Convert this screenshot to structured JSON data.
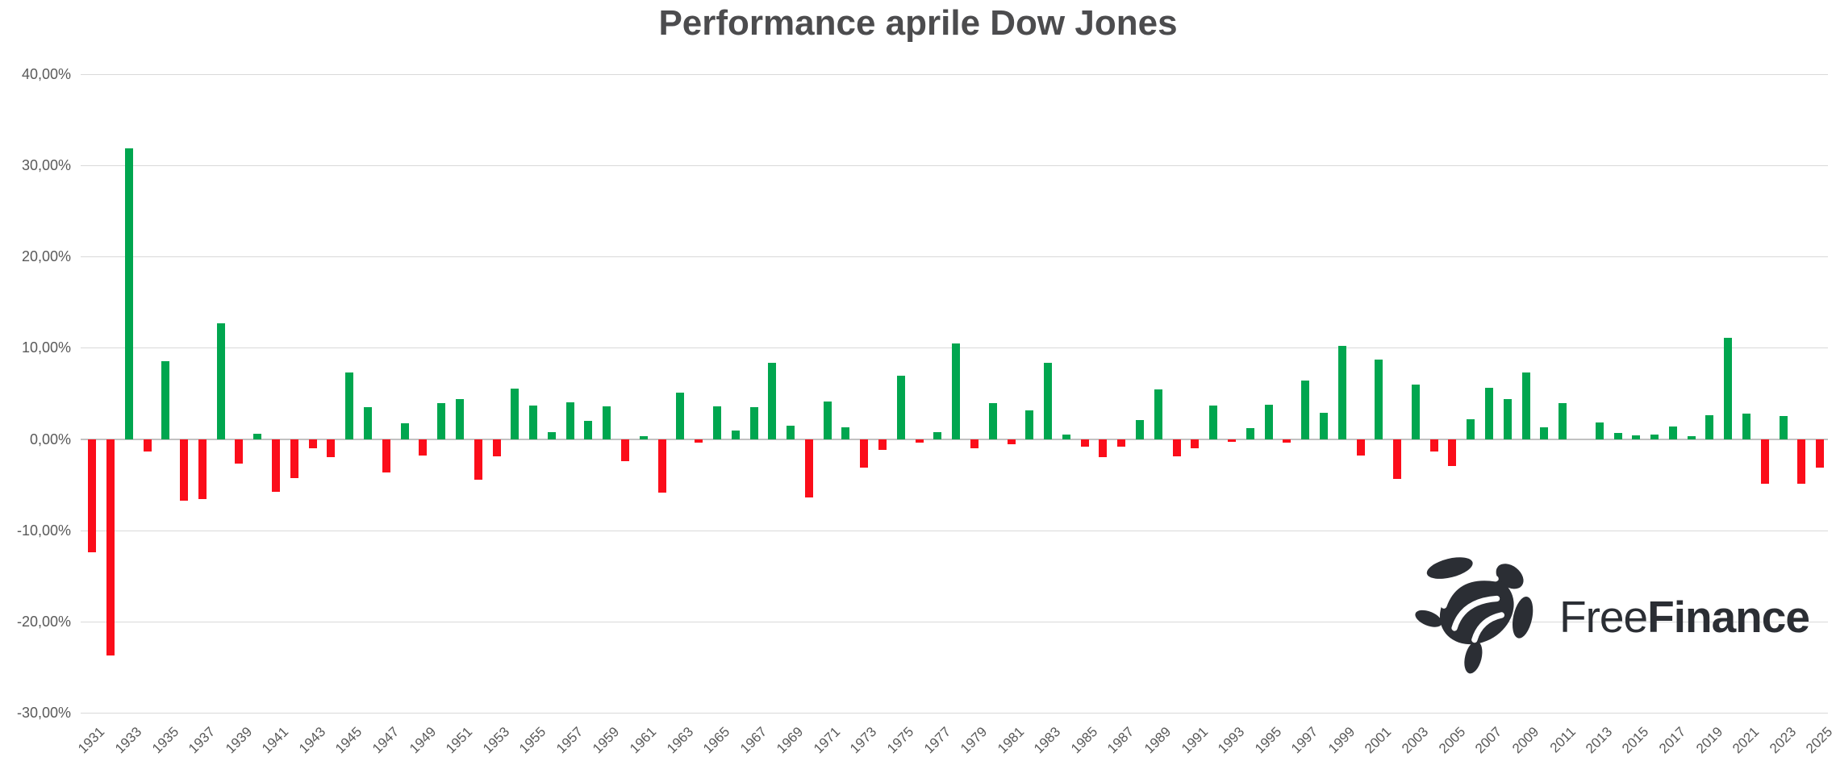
{
  "header": {
    "title": "Performance aprile Dow Jones"
  },
  "watermark": {
    "icon": "turtle-icon",
    "brand_regular": "Free",
    "brand_bold": "Finance"
  },
  "colors": {
    "positive": "#00a64f",
    "negative": "#fb0d1a",
    "gridline": "#d9d9d9",
    "zero_axis": "#c2c2c2",
    "axis_text": "#595959",
    "title_text": "#4c4c4e",
    "logo": "#2b2e34",
    "background": "#ffffff"
  },
  "chart_data": {
    "type": "bar",
    "title": "Performance aprile Dow Jones",
    "xlabel": "",
    "ylabel": "",
    "grid": true,
    "legend": false,
    "value_format": "percent with Italian comma decimals",
    "ylim": [
      -30,
      40
    ],
    "y_ticks": [
      {
        "label": "40,00%",
        "value": 40
      },
      {
        "label": "30,00%",
        "value": 30
      },
      {
        "label": "20,00%",
        "value": 20
      },
      {
        "label": "10,00%",
        "value": 10
      },
      {
        "label": "0,00%",
        "value": 0
      },
      {
        "label": "-10,00%",
        "value": -10
      },
      {
        "label": "-20,00%",
        "value": -20
      },
      {
        "label": "-30,00%",
        "value": -30
      }
    ],
    "x_tick_labels": [
      "1931",
      "1933",
      "1935",
      "1937",
      "1939",
      "1941",
      "1943",
      "1945",
      "1947",
      "1949",
      "1951",
      "1953",
      "1955",
      "1957",
      "1959",
      "1961",
      "1963",
      "1965",
      "1967",
      "1969",
      "1971",
      "1973",
      "1975",
      "1977",
      "1979",
      "1981",
      "1983",
      "1985",
      "1987",
      "1989",
      "1991",
      "1993",
      "1995",
      "1997",
      "1999",
      "2001",
      "2003",
      "2005",
      "2007",
      "2009",
      "2011",
      "2013",
      "2015",
      "2017",
      "2019",
      "2021",
      "2023",
      "2025"
    ],
    "years": [
      1931,
      1932,
      1933,
      1934,
      1935,
      1936,
      1937,
      1938,
      1939,
      1940,
      1941,
      1942,
      1943,
      1944,
      1945,
      1946,
      1947,
      1948,
      1949,
      1950,
      1951,
      1952,
      1953,
      1954,
      1955,
      1956,
      1957,
      1958,
      1959,
      1960,
      1961,
      1962,
      1963,
      1964,
      1965,
      1966,
      1967,
      1968,
      1969,
      1970,
      1971,
      1972,
      1973,
      1974,
      1975,
      1976,
      1977,
      1978,
      1979,
      1980,
      1981,
      1982,
      1983,
      1984,
      1985,
      1986,
      1987,
      1988,
      1989,
      1990,
      1991,
      1992,
      1993,
      1994,
      1995,
      1996,
      1997,
      1998,
      1999,
      2000,
      2001,
      2002,
      2003,
      2004,
      2005,
      2006,
      2007,
      2008,
      2009,
      2010,
      2011,
      2012,
      2013,
      2014,
      2015,
      2016,
      2017,
      2018,
      2019,
      2020,
      2021,
      2022,
      2023,
      2024,
      2025
    ],
    "values": [
      -12.4,
      -23.7,
      31.9,
      -1.4,
      8.5,
      -6.8,
      -6.6,
      12.7,
      -2.7,
      0.6,
      -5.8,
      -4.3,
      -1.0,
      -2.0,
      7.3,
      3.5,
      -3.7,
      1.7,
      -1.8,
      3.9,
      4.4,
      -4.5,
      -1.9,
      5.5,
      3.7,
      0.8,
      4.0,
      2.0,
      3.6,
      -2.4,
      0.3,
      -5.9,
      5.1,
      -0.4,
      3.6,
      0.9,
      3.5,
      8.4,
      1.5,
      -6.4,
      4.1,
      1.3,
      -3.1,
      -1.2,
      6.9,
      -0.4,
      0.8,
      10.5,
      -1.0,
      3.9,
      -0.6,
      3.1,
      8.4,
      0.5,
      -0.8,
      -2.0,
      -0.8,
      2.1,
      5.4,
      -1.9,
      -1.0,
      3.7,
      -0.3,
      1.2,
      3.8,
      -0.4,
      6.4,
      2.9,
      10.2,
      -1.8,
      8.7,
      -4.4,
      6.0,
      -1.4,
      -3.0,
      2.2,
      5.6,
      4.4,
      7.3,
      1.3,
      3.9,
      0.0,
      1.8,
      0.7,
      0.4,
      0.5,
      1.4,
      0.3,
      2.6,
      11.1,
      2.8,
      -4.9,
      2.5,
      -4.9,
      -3.1
    ]
  }
}
